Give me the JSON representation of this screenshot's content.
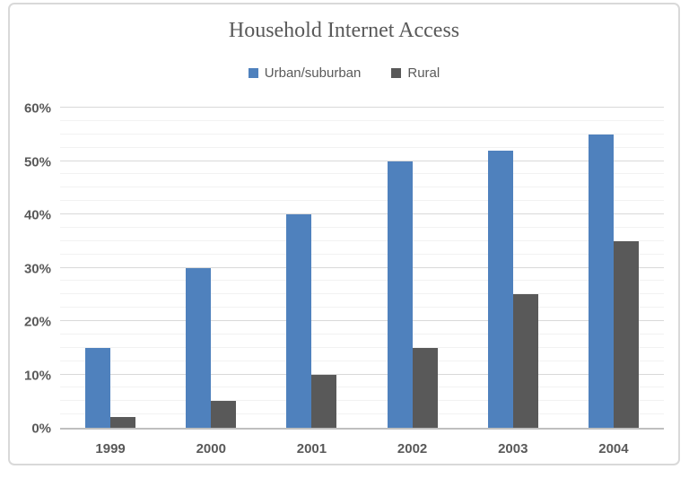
{
  "title": "Household Internet Access",
  "legend": {
    "items": [
      {
        "label": "Urban/suburban",
        "color": "#4f81bd"
      },
      {
        "label": "Rural",
        "color": "#595959"
      }
    ]
  },
  "chart_data": {
    "type": "bar",
    "title": "Household Internet Access",
    "categories": [
      "1999",
      "2000",
      "2001",
      "2002",
      "2003",
      "2004"
    ],
    "series": [
      {
        "name": "Urban/suburban",
        "color": "#4f81bd",
        "values": [
          15,
          30,
          40,
          50,
          52,
          55
        ]
      },
      {
        "name": "Rural",
        "color": "#595959",
        "values": [
          2,
          5,
          10,
          15,
          25,
          35
        ]
      }
    ],
    "xlabel": "",
    "ylabel": "",
    "ylim": [
      0,
      60
    ],
    "ytick_step": 10,
    "minor_tick_step": 2.5,
    "ytick_labels": [
      "0%",
      "10%",
      "20%",
      "30%",
      "40%",
      "50%",
      "60%"
    ],
    "value_suffix": "%",
    "grid": true,
    "legend_position": "top"
  },
  "colors": {
    "urban_bar": "#4f81bd",
    "rural_bar": "#595959",
    "text": "#595959",
    "major_gridline": "#d9d9d9",
    "minor_gridline": "#f2f2f2",
    "axis_line": "#bfbfbf",
    "frame_border": "#d9d9d9",
    "background": "#ffffff"
  }
}
